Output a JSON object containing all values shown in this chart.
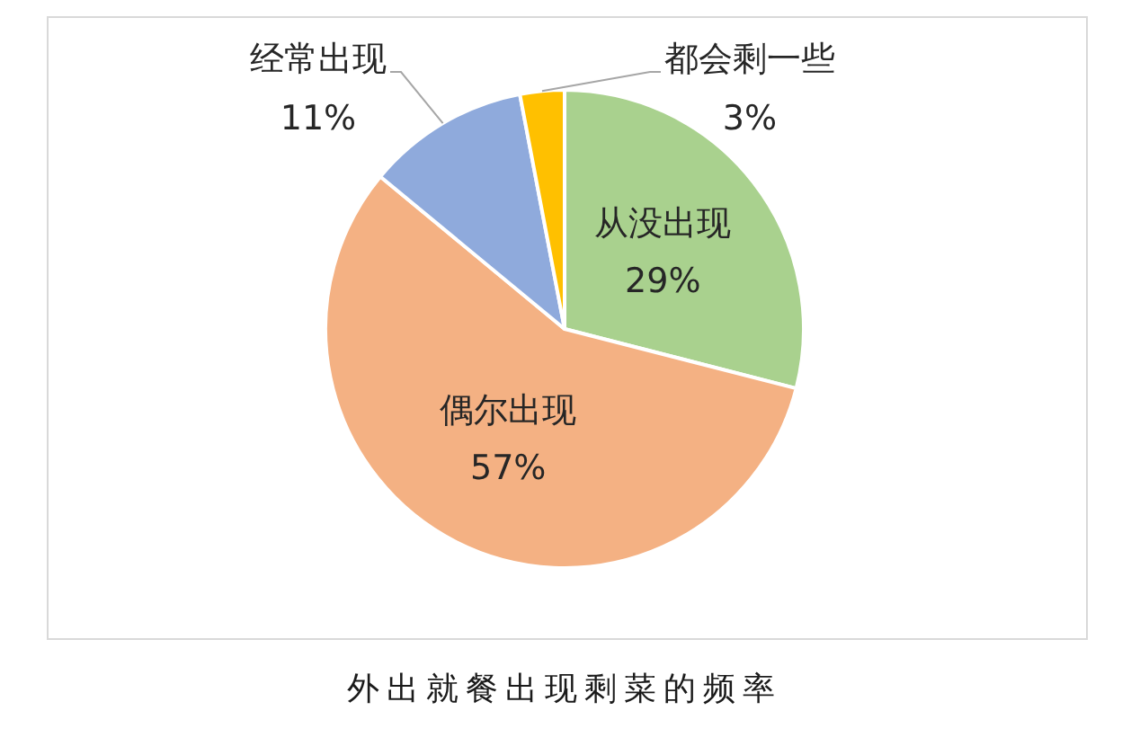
{
  "chart_data": {
    "type": "pie",
    "title": "外出就餐出现剩菜的频率",
    "categories": [
      "从没出现",
      "偶尔出现",
      "经常出现",
      "都会剩一些"
    ],
    "values": [
      29,
      57,
      11,
      3
    ],
    "colors": [
      "#a9d18e",
      "#f4b183",
      "#8faadc",
      "#ffc000"
    ],
    "value_labels": [
      "29%",
      "57%",
      "11%",
      "3%"
    ]
  }
}
